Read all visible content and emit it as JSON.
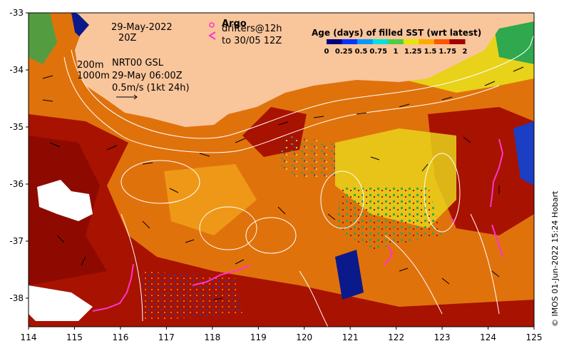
{
  "map": {
    "lon_ticks": [
      "114",
      "115",
      "116",
      "117",
      "118",
      "119",
      "120",
      "121",
      "122",
      "123",
      "124",
      "125"
    ],
    "lat_ticks": [
      "-33",
      "-34",
      "-35",
      "-36",
      "-37",
      "-38"
    ],
    "lon_range": [
      114,
      125
    ],
    "lat_range": [
      -38.5,
      -33
    ],
    "land_color": "#f9c59b",
    "colors": {
      "base_orange": "#e0720c",
      "dark_red": "#a81200",
      "deep_red": "#8e0a00",
      "yellow": "#e8d21a",
      "green": "#2fa84e",
      "blue": "#1a3fc4",
      "navy": "#0b1a8a",
      "magenta": "#ff33cc"
    }
  },
  "annotations": {
    "date": "29-May-2022",
    "time": "20Z",
    "argo_label": "Argo",
    "drifters_label": "drifters@12h",
    "drifters_to": "to 30/05 12Z",
    "contour_200": "200m",
    "model": "NRT00 GSL",
    "contour_1000": "1000m",
    "model_time": "29-May 06:00Z",
    "scale_label": "0.5m/s (1kt 24h)"
  },
  "colorbar": {
    "title": "Age (days) of filled SST (wrt latest)",
    "ticks": [
      "0",
      "0.25",
      "0.5",
      "0.75",
      "1",
      "1.25",
      "1.5",
      "1.75",
      "2"
    ],
    "colors": [
      "#00007f",
      "#0033ff",
      "#0099ff",
      "#00e0e0",
      "#4ccc4c",
      "#e6e600",
      "#ffaa00",
      "#ff5500",
      "#a00000"
    ]
  },
  "credit": "© IMOS 01-Jun-2022 15:24 Hobart"
}
